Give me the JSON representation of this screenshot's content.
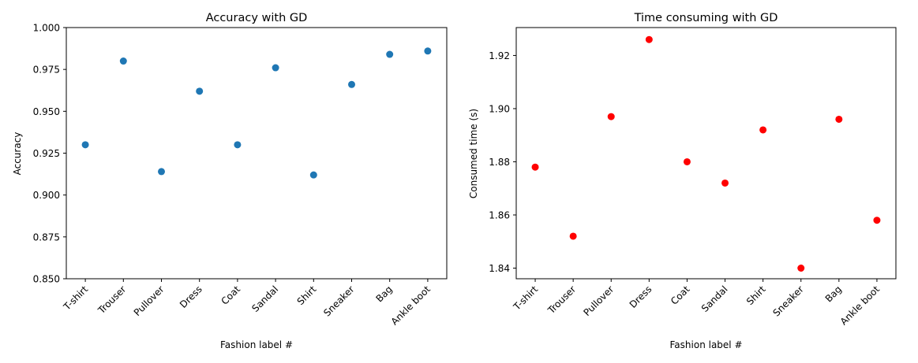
{
  "chart_data": [
    {
      "type": "scatter",
      "title": "Accuracy with GD",
      "xlabel": "Fashion label #",
      "ylabel": "Accuracy",
      "categories": [
        "T-shirt",
        "Trouser",
        "Pullover",
        "Dress",
        "Coat",
        "Sandal",
        "Shirt",
        "Sneaker",
        "Bag",
        "Ankle boot"
      ],
      "values": [
        0.93,
        0.98,
        0.914,
        0.962,
        0.93,
        0.976,
        0.912,
        0.966,
        0.984,
        0.986
      ],
      "ylim": [
        0.85,
        1.0
      ],
      "yticks": [
        0.85,
        0.875,
        0.9,
        0.925,
        0.95,
        0.975,
        1.0
      ],
      "ytick_labels": [
        "0.850",
        "0.875",
        "0.900",
        "0.925",
        "0.950",
        "0.975",
        "1.000"
      ],
      "grid": false,
      "color": "#1f77b4"
    },
    {
      "type": "scatter",
      "title": "Time consuming with GD",
      "xlabel": "Fashion label #",
      "ylabel": "Consumed time (s)",
      "categories": [
        "T-shirt",
        "Trouser",
        "Pullover",
        "Dress",
        "Coat",
        "Sandal",
        "Shirt",
        "Sneaker",
        "Bag",
        "Ankle boot"
      ],
      "values": [
        1.878,
        1.852,
        1.897,
        1.926,
        1.88,
        1.872,
        1.892,
        1.84,
        1.896,
        1.858
      ],
      "ylim": [
        1.836,
        1.9305
      ],
      "yticks": [
        1.84,
        1.86,
        1.88,
        1.9,
        1.92
      ],
      "ytick_labels": [
        "1.84",
        "1.86",
        "1.88",
        "1.90",
        "1.92"
      ],
      "grid": false,
      "color": "#ff0000"
    }
  ]
}
